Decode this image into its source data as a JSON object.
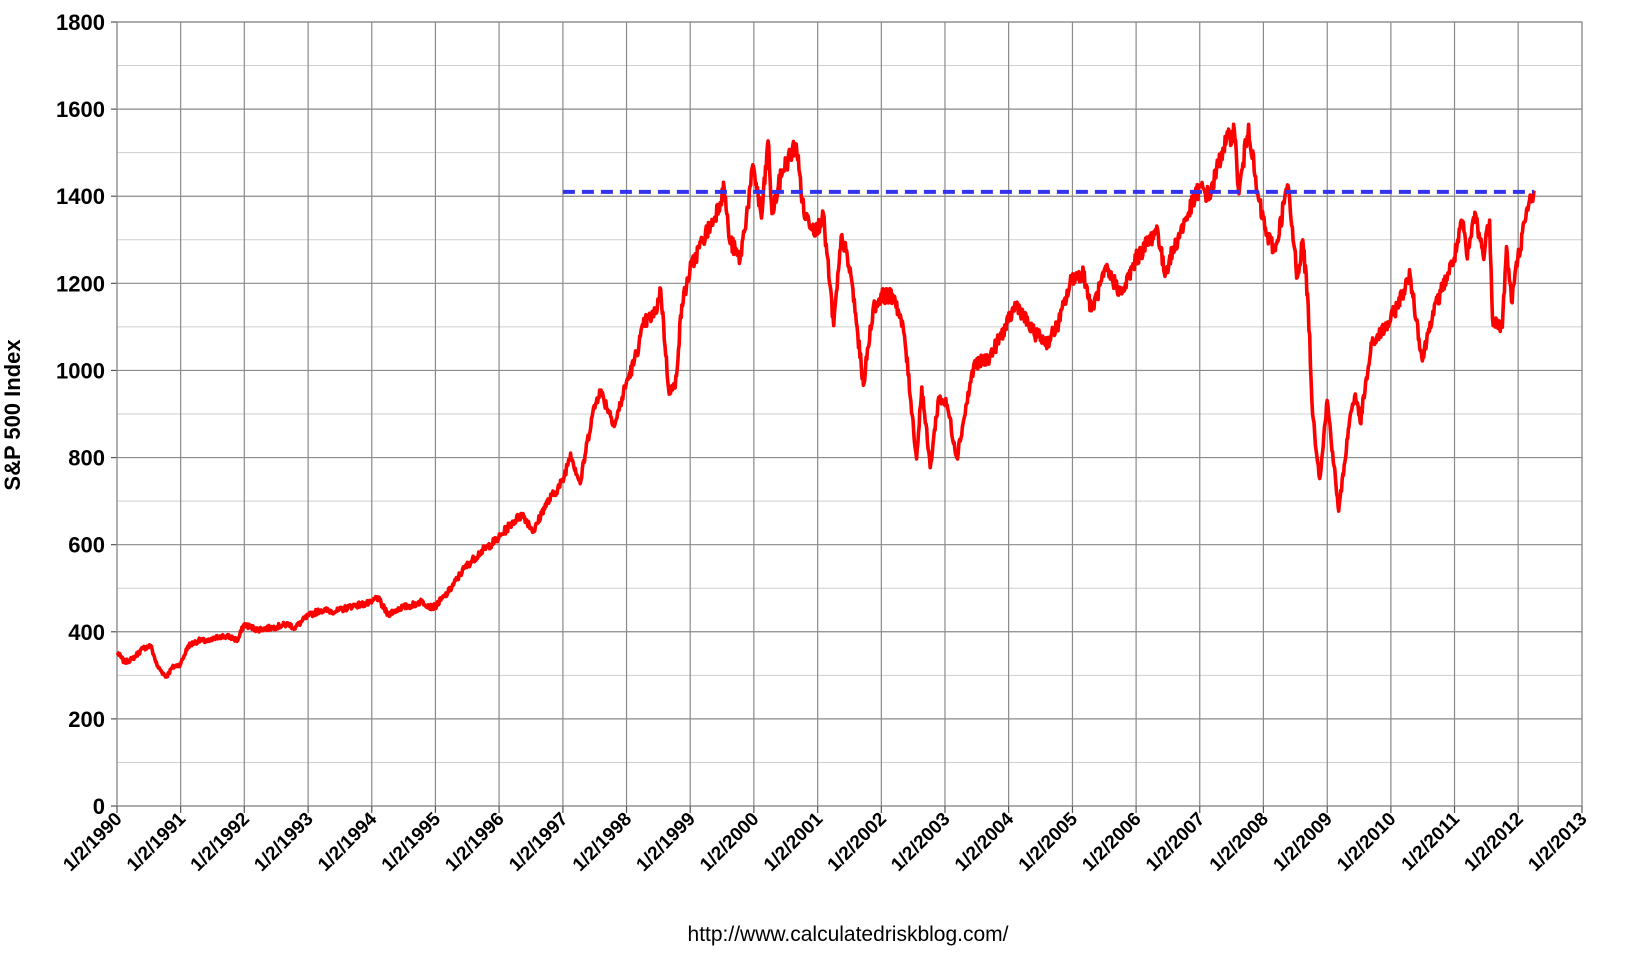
{
  "chart_data": {
    "type": "line",
    "title": "",
    "xlabel": "",
    "ylabel": "S&P 500 Index",
    "source_note": "http://www.calculatedriskblog.com/",
    "ylim": [
      0,
      1800
    ],
    "y_ticks": [
      0,
      200,
      400,
      600,
      800,
      1000,
      1200,
      1400,
      1600,
      1800
    ],
    "x_range": [
      "1990-01-02",
      "2013-01-02"
    ],
    "x_tick_labels": [
      "1/2/1990",
      "1/2/1991",
      "1/2/1992",
      "1/2/1993",
      "1/2/1994",
      "1/2/1995",
      "1/2/1996",
      "1/2/1997",
      "1/2/1998",
      "1/2/1999",
      "1/2/2000",
      "1/2/2001",
      "1/2/2002",
      "1/2/2003",
      "1/2/2004",
      "1/2/2005",
      "1/2/2006",
      "1/2/2007",
      "1/2/2008",
      "1/2/2009",
      "1/2/2010",
      "1/2/2011",
      "1/2/2012",
      "1/2/2013"
    ],
    "grid": true,
    "series": [
      {
        "color": "#ff0000",
        "style": "solid",
        "points": [
          [
            "1990-01-02",
            353
          ],
          [
            "1990-02-15",
            330
          ],
          [
            "1990-04-01",
            338
          ],
          [
            "1990-06-01",
            362
          ],
          [
            "1990-07-15",
            368
          ],
          [
            "1990-08-20",
            322
          ],
          [
            "1990-10-11",
            296
          ],
          [
            "1990-11-15",
            318
          ],
          [
            "1991-01-02",
            326
          ],
          [
            "1991-02-15",
            368
          ],
          [
            "1991-04-15",
            380
          ],
          [
            "1991-06-15",
            378
          ],
          [
            "1991-08-15",
            390
          ],
          [
            "1991-10-15",
            388
          ],
          [
            "1991-11-25",
            380
          ],
          [
            "1991-12-31",
            417
          ],
          [
            "1992-03-15",
            405
          ],
          [
            "1992-06-15",
            410
          ],
          [
            "1992-09-15",
            418
          ],
          [
            "1992-10-15",
            408
          ],
          [
            "1992-12-31",
            436
          ],
          [
            "1993-03-15",
            450
          ],
          [
            "1993-06-15",
            447
          ],
          [
            "1993-09-15",
            460
          ],
          [
            "1993-12-31",
            466
          ],
          [
            "1994-02-01",
            480
          ],
          [
            "1994-04-04",
            440
          ],
          [
            "1994-06-15",
            455
          ],
          [
            "1994-08-15",
            460
          ],
          [
            "1994-10-15",
            470
          ],
          [
            "1994-12-15",
            455
          ],
          [
            "1995-01-02",
            459
          ],
          [
            "1995-03-15",
            490
          ],
          [
            "1995-06-15",
            545
          ],
          [
            "1995-09-15",
            582
          ],
          [
            "1995-12-31",
            615
          ],
          [
            "1996-03-15",
            650
          ],
          [
            "1996-05-15",
            670
          ],
          [
            "1996-07-20",
            630
          ],
          [
            "1996-09-15",
            685
          ],
          [
            "1996-12-31",
            745
          ],
          [
            "1997-02-15",
            810
          ],
          [
            "1997-04-11",
            740
          ],
          [
            "1997-06-15",
            890
          ],
          [
            "1997-08-01",
            955
          ],
          [
            "1997-10-27",
            876
          ],
          [
            "1997-12-31",
            970
          ],
          [
            "1998-02-15",
            1020
          ],
          [
            "1998-04-15",
            1110
          ],
          [
            "1998-06-15",
            1130
          ],
          [
            "1998-07-17",
            1186
          ],
          [
            "1998-08-31",
            957
          ],
          [
            "1998-10-08",
            960
          ],
          [
            "1998-11-15",
            1150
          ],
          [
            "1998-12-31",
            1229
          ],
          [
            "1999-03-15",
            1300
          ],
          [
            "1999-05-15",
            1345
          ],
          [
            "1999-07-16",
            1418
          ],
          [
            "1999-08-15",
            1300
          ],
          [
            "1999-10-15",
            1254
          ],
          [
            "1999-12-31",
            1469
          ],
          [
            "2000-02-15",
            1350
          ],
          [
            "2000-03-24",
            1527
          ],
          [
            "2000-04-15",
            1360
          ],
          [
            "2000-06-15",
            1460
          ],
          [
            "2000-09-01",
            1520
          ],
          [
            "2000-10-15",
            1360
          ],
          [
            "2000-12-31",
            1320
          ],
          [
            "2001-01-31",
            1366
          ],
          [
            "2001-04-04",
            1103
          ],
          [
            "2001-05-21",
            1312
          ],
          [
            "2001-07-15",
            1210
          ],
          [
            "2001-09-21",
            966
          ],
          [
            "2001-11-15",
            1140
          ],
          [
            "2002-01-04",
            1172
          ],
          [
            "2002-03-19",
            1170
          ],
          [
            "2002-05-15",
            1080
          ],
          [
            "2002-07-23",
            797
          ],
          [
            "2002-08-22",
            962
          ],
          [
            "2002-10-09",
            777
          ],
          [
            "2002-11-27",
            938
          ],
          [
            "2003-01-15",
            920
          ],
          [
            "2003-03-11",
            800
          ],
          [
            "2003-06-15",
            1010
          ],
          [
            "2003-09-15",
            1030
          ],
          [
            "2003-12-31",
            1112
          ],
          [
            "2004-02-15",
            1155
          ],
          [
            "2004-05-15",
            1090
          ],
          [
            "2004-08-12",
            1064
          ],
          [
            "2004-10-15",
            1110
          ],
          [
            "2004-12-31",
            1212
          ],
          [
            "2005-03-07",
            1225
          ],
          [
            "2005-04-20",
            1137
          ],
          [
            "2005-07-15",
            1230
          ],
          [
            "2005-10-13",
            1176
          ],
          [
            "2005-12-31",
            1255
          ],
          [
            "2006-05-05",
            1325
          ],
          [
            "2006-06-13",
            1223
          ],
          [
            "2006-09-15",
            1320
          ],
          [
            "2006-12-31",
            1420
          ],
          [
            "2007-02-27",
            1400
          ],
          [
            "2007-05-15",
            1510
          ],
          [
            "2007-07-19",
            1553
          ],
          [
            "2007-08-15",
            1406
          ],
          [
            "2007-10-09",
            1565
          ],
          [
            "2007-11-26",
            1407
          ],
          [
            "2008-01-22",
            1310
          ],
          [
            "2008-03-10",
            1275
          ],
          [
            "2008-05-19",
            1426
          ],
          [
            "2008-07-15",
            1214
          ],
          [
            "2008-08-15",
            1300
          ],
          [
            "2008-09-15",
            1150
          ],
          [
            "2008-10-10",
            899
          ],
          [
            "2008-11-20",
            752
          ],
          [
            "2009-01-02",
            931
          ],
          [
            "2009-03-09",
            677
          ],
          [
            "2009-05-15",
            900
          ],
          [
            "2009-06-12",
            946
          ],
          [
            "2009-07-10",
            880
          ],
          [
            "2009-09-15",
            1060
          ],
          [
            "2009-12-31",
            1115
          ],
          [
            "2010-04-23",
            1217
          ],
          [
            "2010-07-02",
            1022
          ],
          [
            "2010-08-15",
            1110
          ],
          [
            "2010-10-15",
            1180
          ],
          [
            "2010-12-31",
            1258
          ],
          [
            "2011-02-18",
            1343
          ],
          [
            "2011-03-16",
            1256
          ],
          [
            "2011-04-29",
            1363
          ],
          [
            "2011-06-15",
            1265
          ],
          [
            "2011-07-22",
            1345
          ],
          [
            "2011-08-08",
            1119
          ],
          [
            "2011-10-03",
            1099
          ],
          [
            "2011-10-27",
            1284
          ],
          [
            "2011-11-25",
            1158
          ],
          [
            "2011-12-31",
            1258
          ],
          [
            "2012-02-15",
            1350
          ],
          [
            "2012-03-15",
            1400
          ],
          [
            "2012-04-02",
            1413
          ]
        ]
      },
      {
        "color": "#3333ee",
        "style": "dashed",
        "points": [
          [
            "1997-01-02",
            1410
          ],
          [
            "2012-04-02",
            1410
          ]
        ]
      }
    ]
  }
}
